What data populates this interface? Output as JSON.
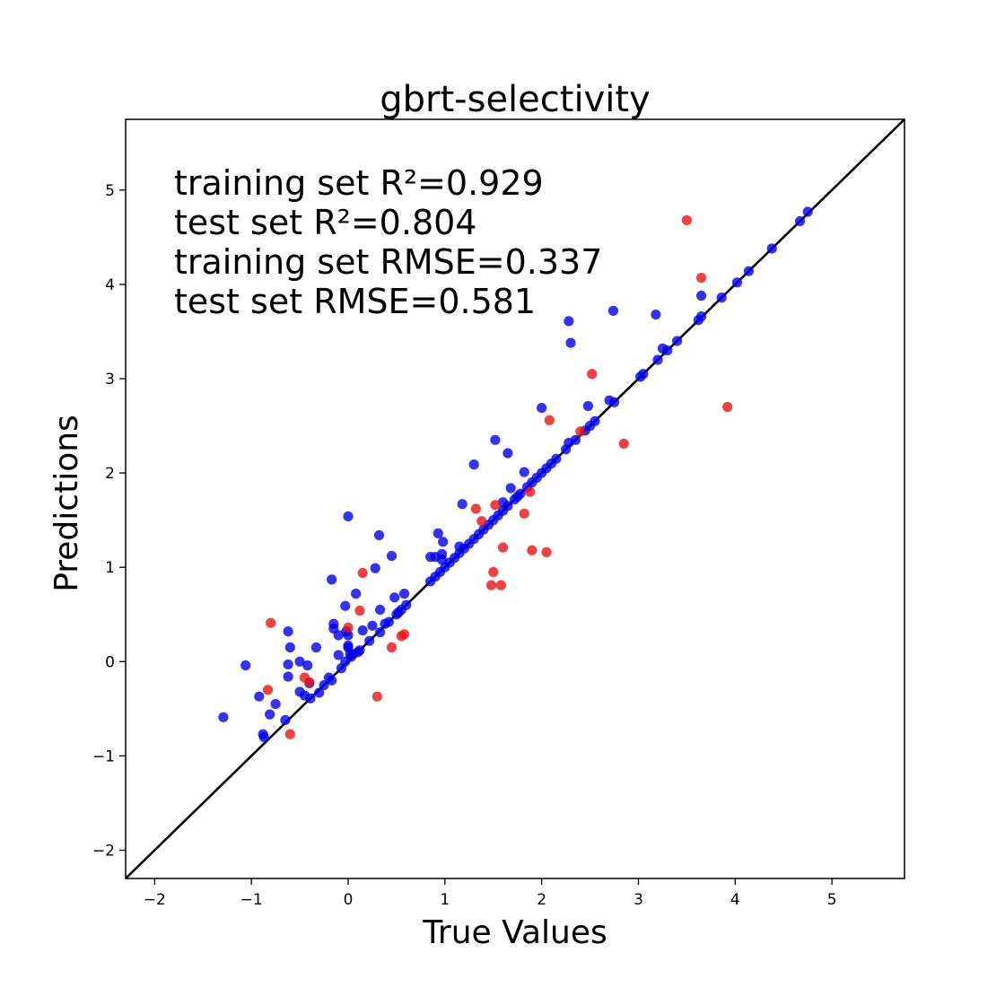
{
  "chart_data": {
    "type": "scatter",
    "title": "gbrt-selectivity",
    "xlabel": "True Values",
    "ylabel": "Predictions",
    "xlim": [
      -2.3,
      5.75
    ],
    "ylim": [
      -2.3,
      5.75
    ],
    "grid": false,
    "x_ticks": [
      -2,
      -1,
      0,
      1,
      2,
      3,
      4,
      5
    ],
    "y_ticks": [
      -2,
      -1,
      0,
      1,
      2,
      3,
      4,
      5
    ],
    "x_tick_labels": [
      "−2",
      "−1",
      "0",
      "1",
      "2",
      "3",
      "4",
      "5"
    ],
    "y_tick_labels": [
      "−2",
      "−1",
      "0",
      "1",
      "2",
      "3",
      "4",
      "5"
    ],
    "reference_line": {
      "from": [
        -2.3,
        -2.3
      ],
      "to": [
        5.75,
        5.75
      ],
      "color": "#000000"
    },
    "annotations": [
      "training set R²=0.929",
      "test set R²=0.804",
      "training set RMSE=0.337",
      "test set RMSE=0.581"
    ],
    "series": [
      {
        "color": "#0000ee",
        "points": [
          [
            -1.29,
            -0.59
          ],
          [
            -1.06,
            -0.04
          ],
          [
            -0.92,
            -0.37
          ],
          [
            -0.88,
            -0.77
          ],
          [
            -0.87,
            -0.8
          ],
          [
            -0.81,
            -0.56
          ],
          [
            -0.75,
            -0.45
          ],
          [
            -0.65,
            -0.62
          ],
          [
            -0.62,
            0.32
          ],
          [
            -0.62,
            -0.03
          ],
          [
            -0.6,
            0.15
          ],
          [
            -0.62,
            -0.16
          ],
          [
            -0.5,
            -0.32
          ],
          [
            -0.5,
            0.0
          ],
          [
            -0.45,
            -0.36
          ],
          [
            -0.42,
            -0.04
          ],
          [
            -0.4,
            -0.23
          ],
          [
            -0.39,
            -0.39
          ],
          [
            -0.33,
            0.15
          ],
          [
            -0.3,
            -0.33
          ],
          [
            -0.25,
            -0.25
          ],
          [
            -0.2,
            -0.17
          ],
          [
            -0.17,
            -0.2
          ],
          [
            -0.17,
            0.87
          ],
          [
            -0.15,
            0.4
          ],
          [
            -0.15,
            0.35
          ],
          [
            -0.1,
            0.07
          ],
          [
            -0.1,
            0.28
          ],
          [
            -0.07,
            -0.07
          ],
          [
            -0.03,
            0.0
          ],
          [
            -0.03,
            0.59
          ],
          [
            -0.02,
            0.32
          ],
          [
            0.0,
            0.28
          ],
          [
            0.0,
            1.54
          ],
          [
            0.0,
            0.15
          ],
          [
            0.0,
            0.17
          ],
          [
            0.02,
            0.08
          ],
          [
            0.03,
            0.05
          ],
          [
            0.05,
            0.08
          ],
          [
            0.08,
            0.72
          ],
          [
            0.1,
            0.1
          ],
          [
            0.12,
            0.12
          ],
          [
            0.15,
            0.33
          ],
          [
            0.22,
            0.22
          ],
          [
            0.25,
            0.38
          ],
          [
            0.28,
            0.99
          ],
          [
            0.32,
            1.34
          ],
          [
            0.33,
            0.31
          ],
          [
            0.33,
            0.55
          ],
          [
            0.38,
            0.4
          ],
          [
            0.42,
            0.42
          ],
          [
            0.45,
            1.12
          ],
          [
            0.48,
            0.68
          ],
          [
            0.5,
            0.5
          ],
          [
            0.52,
            0.52
          ],
          [
            0.55,
            0.55
          ],
          [
            0.58,
            0.72
          ],
          [
            0.6,
            0.6
          ],
          [
            0.85,
            0.85
          ],
          [
            0.85,
            1.11
          ],
          [
            0.9,
            0.9
          ],
          [
            0.9,
            1.11
          ],
          [
            0.93,
            1.36
          ],
          [
            0.95,
            0.95
          ],
          [
            0.97,
            1.14
          ],
          [
            0.97,
            1.08
          ],
          [
            0.98,
            1.27
          ],
          [
            1.0,
            1.0
          ],
          [
            1.05,
            1.05
          ],
          [
            1.1,
            1.1
          ],
          [
            1.15,
            1.15
          ],
          [
            1.15,
            1.22
          ],
          [
            1.2,
            1.2
          ],
          [
            1.18,
            1.67
          ],
          [
            1.25,
            1.25
          ],
          [
            1.3,
            1.3
          ],
          [
            1.3,
            2.09
          ],
          [
            1.35,
            1.35
          ],
          [
            1.4,
            1.4
          ],
          [
            1.45,
            1.45
          ],
          [
            1.5,
            1.5
          ],
          [
            1.52,
            2.35
          ],
          [
            1.55,
            1.55
          ],
          [
            1.6,
            1.6
          ],
          [
            1.6,
            1.69
          ],
          [
            1.65,
            1.65
          ],
          [
            1.65,
            2.21
          ],
          [
            1.68,
            1.84
          ],
          [
            1.72,
            1.72
          ],
          [
            1.75,
            1.75
          ],
          [
            1.78,
            1.78
          ],
          [
            1.82,
            2.01
          ],
          [
            1.85,
            1.85
          ],
          [
            1.9,
            1.9
          ],
          [
            1.95,
            1.95
          ],
          [
            2.0,
            2.0
          ],
          [
            2.0,
            2.69
          ],
          [
            2.05,
            2.05
          ],
          [
            2.1,
            2.1
          ],
          [
            2.15,
            2.15
          ],
          [
            2.25,
            2.25
          ],
          [
            2.28,
            2.32
          ],
          [
            2.28,
            3.61
          ],
          [
            2.3,
            3.38
          ],
          [
            2.35,
            2.35
          ],
          [
            2.45,
            2.45
          ],
          [
            2.48,
            2.71
          ],
          [
            2.5,
            2.5
          ],
          [
            2.55,
            2.55
          ],
          [
            2.7,
            2.77
          ],
          [
            2.74,
            3.72
          ],
          [
            2.75,
            2.75
          ],
          [
            3.02,
            3.02
          ],
          [
            3.05,
            3.05
          ],
          [
            3.18,
            3.68
          ],
          [
            3.2,
            3.2
          ],
          [
            3.25,
            3.32
          ],
          [
            3.3,
            3.3
          ],
          [
            3.4,
            3.4
          ],
          [
            3.62,
            3.62
          ],
          [
            3.65,
            3.88
          ],
          [
            3.65,
            3.66
          ],
          [
            3.86,
            3.86
          ],
          [
            4.02,
            4.02
          ],
          [
            4.14,
            4.14
          ],
          [
            4.38,
            4.38
          ],
          [
            4.67,
            4.67
          ],
          [
            4.75,
            4.77
          ]
        ]
      },
      {
        "color": "#ee1111",
        "points": [
          [
            -0.83,
            -0.3
          ],
          [
            -0.8,
            0.41
          ],
          [
            -0.6,
            -0.77
          ],
          [
            -0.45,
            -0.17
          ],
          [
            -0.4,
            -0.22
          ],
          [
            0.0,
            0.36
          ],
          [
            0.12,
            0.54
          ],
          [
            0.15,
            0.94
          ],
          [
            0.3,
            -0.37
          ],
          [
            0.45,
            0.15
          ],
          [
            0.55,
            0.27
          ],
          [
            0.58,
            0.29
          ],
          [
            1.32,
            1.62
          ],
          [
            1.38,
            1.49
          ],
          [
            1.48,
            0.81
          ],
          [
            1.5,
            0.95
          ],
          [
            1.52,
            1.66
          ],
          [
            1.58,
            0.81
          ],
          [
            1.6,
            1.21
          ],
          [
            1.82,
            1.57
          ],
          [
            1.88,
            1.8
          ],
          [
            1.9,
            1.18
          ],
          [
            2.05,
            1.16
          ],
          [
            2.08,
            2.56
          ],
          [
            2.4,
            2.44
          ],
          [
            2.52,
            3.05
          ],
          [
            2.85,
            2.31
          ],
          [
            3.5,
            4.68
          ],
          [
            3.65,
            4.07
          ],
          [
            3.92,
            2.7
          ]
        ]
      }
    ]
  }
}
